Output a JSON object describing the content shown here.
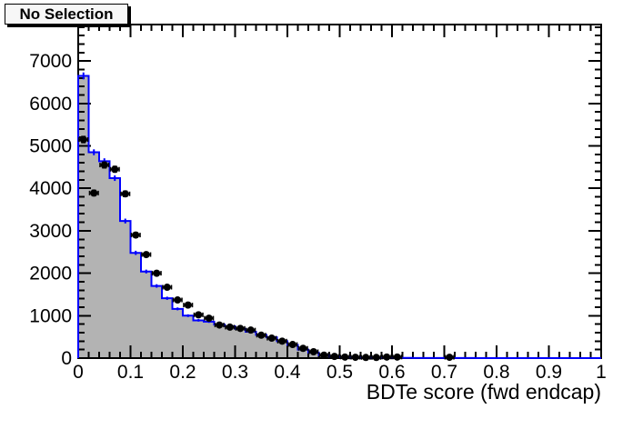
{
  "title_box": {
    "label": "No Selection"
  },
  "colors": {
    "canvas_bg": "#ffffff",
    "frame": "#000000",
    "hist_fill": "#b3b3b3",
    "hist_line": "#0000ff",
    "marker": "#000000",
    "label_text": "#000000"
  },
  "chart_data": {
    "type": "histogram",
    "title": "No Selection",
    "xlabel": "BDTe score (fwd endcap)",
    "ylabel": "",
    "xlim": [
      0,
      1
    ],
    "ylim": [
      0,
      7860
    ],
    "grid": false,
    "legend": false,
    "bins": {
      "start": 0.0,
      "width": 0.02,
      "count": 50
    },
    "series": [
      {
        "name": "filled-step-histogram",
        "style": "step-filled",
        "fill": "#b3b3b3",
        "line": "#0000ff",
        "values": [
          6650,
          4850,
          4640,
          4240,
          3230,
          2480,
          2040,
          1700,
          1410,
          1160,
          1000,
          890,
          860,
          790,
          750,
          690,
          620,
          545,
          490,
          400,
          310,
          200,
          130,
          70,
          35,
          22,
          16,
          12,
          9,
          7,
          6,
          5,
          4,
          3,
          3,
          2,
          2,
          2,
          1,
          1,
          1,
          1,
          1,
          0,
          0,
          0,
          0,
          0,
          0,
          0
        ]
      },
      {
        "name": "data-points",
        "style": "scatter-errorbar",
        "color": "#000000",
        "x": [
          0.01,
          0.03,
          0.05,
          0.07,
          0.09,
          0.11,
          0.13,
          0.15,
          0.17,
          0.19,
          0.21,
          0.23,
          0.25,
          0.27,
          0.29,
          0.31,
          0.33,
          0.35,
          0.37,
          0.39,
          0.41,
          0.43,
          0.45,
          0.47,
          0.49,
          0.51,
          0.53,
          0.55,
          0.57,
          0.59,
          0.61,
          0.71
        ],
        "y": [
          5150,
          3890,
          4550,
          4450,
          3870,
          2900,
          2440,
          2000,
          1670,
          1370,
          1250,
          1020,
          940,
          780,
          730,
          700,
          660,
          540,
          470,
          400,
          320,
          230,
          150,
          70,
          40,
          25,
          20,
          15,
          15,
          25,
          25,
          20
        ]
      }
    ],
    "x_major_step": 0.1,
    "x_minor_step": 0.02,
    "y_major_step": 1000,
    "y_minor_step": 200,
    "x_tick_labels": [
      "0",
      "0.1",
      "0.2",
      "0.3",
      "0.4",
      "0.5",
      "0.6",
      "0.7",
      "0.8",
      "0.9",
      "1"
    ],
    "y_tick_labels": [
      "0",
      "1000",
      "2000",
      "3000",
      "4000",
      "5000",
      "6000",
      "7000"
    ]
  }
}
